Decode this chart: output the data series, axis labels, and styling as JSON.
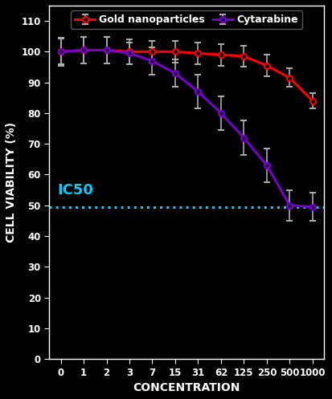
{
  "background_color": "#000000",
  "axes_color": "#000000",
  "text_color": "#ffffff",
  "tick_label_color": "#ffffff",
  "xlabel": "CONCENTRATION",
  "ylabel": "CELL VIABILITY (%)",
  "xlim": [
    -0.5,
    11.5
  ],
  "ylim": [
    0,
    115
  ],
  "yticks": [
    0,
    10,
    20,
    30,
    40,
    50,
    60,
    70,
    80,
    90,
    100,
    110
  ],
  "x_labels": [
    "0",
    "1",
    "2",
    "3",
    "7",
    "15",
    "31",
    "62",
    "125",
    "250",
    "500",
    "1000"
  ],
  "gold_values": [
    100,
    100.5,
    100.5,
    100,
    100,
    100,
    99.5,
    99,
    98.5,
    95.5,
    91.5,
    84
  ],
  "gold_errors": [
    4.5,
    4.2,
    4.2,
    4.0,
    3.5,
    3.5,
    3.5,
    3.5,
    3.5,
    3.5,
    3.0,
    2.5
  ],
  "cyto_values": [
    100,
    100.5,
    100.5,
    99.5,
    97,
    93,
    87,
    80,
    72,
    63,
    50,
    49.5
  ],
  "cyto_errors": [
    4.2,
    4.2,
    4.2,
    3.5,
    4.5,
    4.5,
    5.5,
    5.5,
    5.5,
    5.5,
    5.0,
    4.5
  ],
  "gold_color": "#ff0000",
  "cyto_color": "#7700cc",
  "ic50_color": "#00cfff",
  "ic50_value": 49.5,
  "ic50_label": "IC50",
  "legend_gold": "Gold nanoparticles",
  "legend_cyto": "Cytarabine",
  "marker_size": 5,
  "line_width": 2.2,
  "font_size_axis_label": 10,
  "font_size_ticks": 8.5,
  "font_size_legend": 9,
  "font_size_ic50": 13
}
